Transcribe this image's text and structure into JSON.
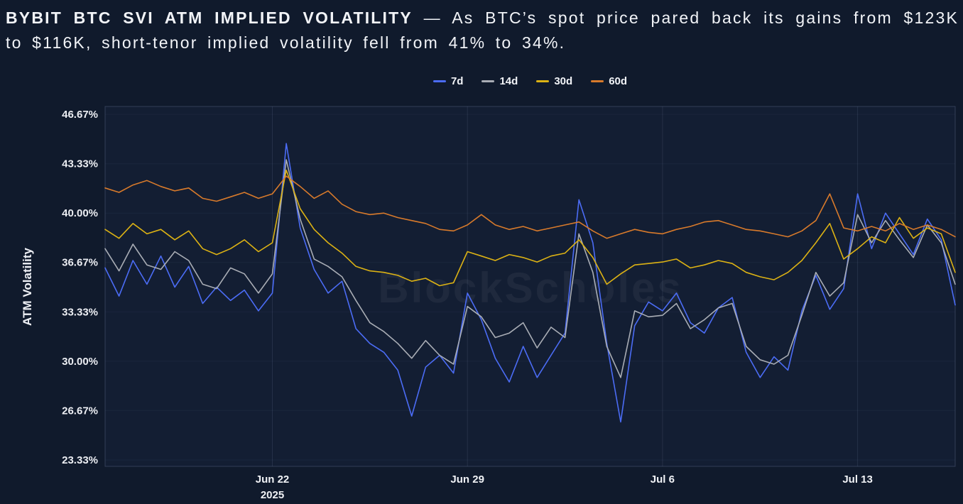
{
  "title": {
    "bold": "BYBIT BTC SVI ATM IMPLIED VOLATILITY",
    "rest": "— As BTC’s spot price pared back its gains from $123K to $116K, short-tenor implied volatility fell from 41% to 34%."
  },
  "watermark": "BlockScholes",
  "colors": {
    "background": "#101a2c",
    "plot_border": "rgba(148,164,200,0.25)",
    "plot_fill": "rgba(80,110,190,0.05)",
    "grid_h": "rgba(148,164,200,0.06)",
    "grid_v": "rgba(148,164,200,0.14)",
    "tick_text": "#eceef3",
    "title_text": "#f2f4f8"
  },
  "chart_data": {
    "type": "line",
    "title": "",
    "xlabel": "",
    "ylabel": "ATM Volatility",
    "legend_position": "top",
    "grid": "faint",
    "ylim": [
      22.9,
      47.2
    ],
    "y_ticks": [
      46.67,
      43.33,
      40.0,
      36.67,
      33.33,
      30.0,
      26.67,
      23.33
    ],
    "x_unit": "days",
    "x_step": 0.5,
    "x_max": 30.5,
    "x_ticks": [
      {
        "x": 6,
        "label": "Jun 22",
        "sublabel": "2025"
      },
      {
        "x": 13,
        "label": "Jun 29"
      },
      {
        "x": 20,
        "label": "Jul 6"
      },
      {
        "x": 27,
        "label": "Jul 13"
      }
    ],
    "series": [
      {
        "name": "7d",
        "color": "#4b6cf5",
        "values": [
          36.3,
          34.4,
          36.8,
          35.2,
          37.1,
          35.0,
          36.4,
          33.9,
          35.0,
          34.1,
          34.8,
          33.4,
          34.6,
          44.7,
          39.0,
          36.2,
          34.6,
          35.4,
          32.2,
          31.2,
          30.6,
          29.4,
          26.3,
          29.6,
          30.4,
          29.2,
          34.6,
          32.8,
          30.2,
          28.6,
          31.0,
          28.9,
          30.4,
          31.9,
          40.9,
          38.0,
          31.2,
          25.9,
          32.4,
          34.0,
          33.4,
          34.6,
          32.6,
          31.9,
          33.6,
          34.3,
          30.6,
          28.9,
          30.3,
          29.4,
          33.4,
          35.8,
          33.5,
          34.9,
          41.3,
          37.6,
          40.0,
          38.6,
          37.2,
          39.6,
          38.2,
          33.8
        ]
      },
      {
        "name": "14d",
        "color": "#a9adb5",
        "values": [
          37.6,
          36.1,
          37.9,
          36.5,
          36.2,
          37.4,
          36.8,
          35.2,
          34.9,
          36.3,
          35.9,
          34.6,
          35.9,
          43.6,
          39.6,
          36.9,
          36.4,
          35.7,
          34.1,
          32.6,
          32.0,
          31.2,
          30.2,
          31.4,
          30.4,
          29.8,
          33.7,
          33.0,
          31.6,
          31.9,
          32.6,
          30.9,
          32.3,
          31.6,
          38.6,
          36.0,
          31.0,
          28.9,
          33.4,
          33.0,
          33.1,
          33.9,
          32.2,
          32.8,
          33.6,
          33.9,
          31.0,
          30.1,
          29.8,
          30.4,
          33.1,
          36.0,
          34.4,
          35.3,
          39.9,
          38.0,
          39.5,
          38.2,
          37.0,
          39.2,
          38.0,
          35.2
        ]
      },
      {
        "name": "30d",
        "color": "#dcb214",
        "values": [
          38.9,
          38.3,
          39.3,
          38.6,
          38.9,
          38.2,
          38.8,
          37.6,
          37.2,
          37.6,
          38.2,
          37.4,
          38.0,
          42.9,
          40.3,
          38.9,
          38.0,
          37.3,
          36.4,
          36.1,
          36.0,
          35.8,
          35.4,
          35.6,
          35.1,
          35.3,
          37.4,
          37.1,
          36.8,
          37.2,
          37.0,
          36.7,
          37.1,
          37.3,
          38.2,
          37.0,
          35.2,
          35.9,
          36.5,
          36.6,
          36.7,
          36.9,
          36.3,
          36.5,
          36.8,
          36.6,
          36.0,
          35.7,
          35.5,
          36.0,
          36.8,
          38.0,
          39.3,
          36.9,
          37.6,
          38.4,
          38.0,
          39.7,
          38.3,
          39.0,
          38.6,
          36.0
        ]
      },
      {
        "name": "60d",
        "color": "#d87a2b",
        "values": [
          41.7,
          41.4,
          41.9,
          42.2,
          41.8,
          41.5,
          41.7,
          41.0,
          40.8,
          41.1,
          41.4,
          41.0,
          41.3,
          42.5,
          41.8,
          41.0,
          41.5,
          40.6,
          40.1,
          39.9,
          40.0,
          39.7,
          39.5,
          39.3,
          38.9,
          38.8,
          39.2,
          39.9,
          39.2,
          38.9,
          39.1,
          38.8,
          39.0,
          39.2,
          39.4,
          38.8,
          38.3,
          38.6,
          38.9,
          38.7,
          38.6,
          38.9,
          39.1,
          39.4,
          39.5,
          39.2,
          38.9,
          38.8,
          38.6,
          38.4,
          38.8,
          39.5,
          41.3,
          39.0,
          38.8,
          39.1,
          38.8,
          39.3,
          38.9,
          39.2,
          38.9,
          38.4
        ]
      }
    ]
  }
}
